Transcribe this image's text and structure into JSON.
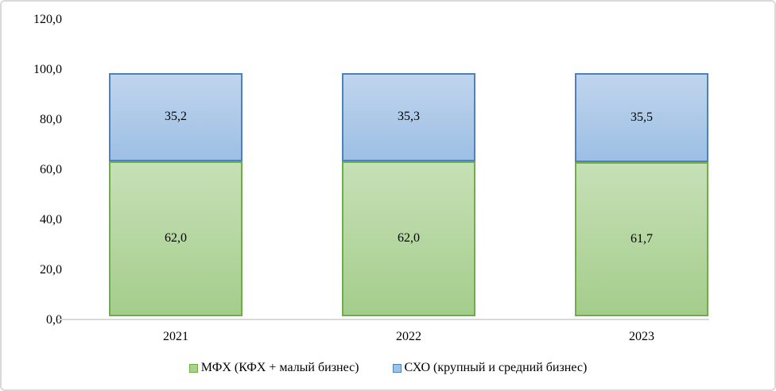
{
  "chart_data": {
    "type": "bar",
    "stacked": true,
    "title": "",
    "xlabel": "",
    "ylabel": "",
    "categories": [
      "2021",
      "2022",
      "2023"
    ],
    "series": [
      {
        "name": "МФХ (КФХ + малый бизнес)",
        "values": [
          62.0,
          62.0,
          61.7
        ],
        "labels": [
          "62,0",
          "62,0",
          "61,7"
        ],
        "fill": "#a9d18e",
        "border": "#71ad47"
      },
      {
        "name": "СХО (крупный и средний бизнес)",
        "values": [
          35.2,
          35.3,
          35.5
        ],
        "labels": [
          "35,2",
          "35,3",
          "35,5"
        ],
        "fill": "#9dc3e6",
        "border": "#4f81bd"
      }
    ],
    "ylim": [
      0,
      120
    ],
    "ytick_step": 20,
    "ytick_labels": [
      "0,0",
      "20,0",
      "40,0",
      "60,0",
      "80,0",
      "100,0",
      "120,0"
    ],
    "grid": false,
    "legend_position": "bottom",
    "decimal_separator": ","
  },
  "colors": {
    "figure_border": "#d9d9d9",
    "axis_line": "#d9d9d9",
    "text": "#000000"
  }
}
